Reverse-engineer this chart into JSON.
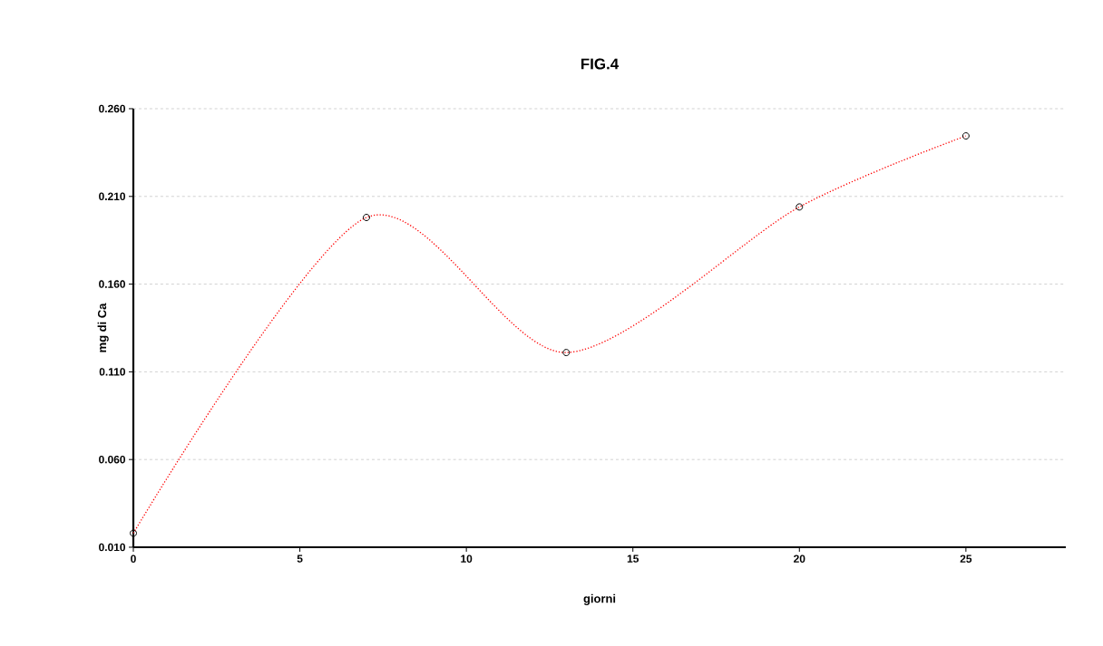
{
  "chart_data": {
    "type": "line",
    "title": "FIG.4",
    "xlabel": "giorni",
    "ylabel": "mg di Ca",
    "x": [
      0,
      7,
      13,
      20,
      25
    ],
    "series": [
      {
        "color": "#ff0000",
        "values": [
          0.018,
          0.198,
          0.121,
          0.204,
          0.2445
        ]
      }
    ],
    "xlim": [
      0,
      28
    ],
    "xticks": [
      0,
      5,
      10,
      15,
      20,
      25
    ],
    "ylim": [
      0.01,
      0.26
    ],
    "yticks": [
      {
        "value": 0.01,
        "label": "0.010"
      },
      {
        "value": 0.06,
        "label": "0.060"
      },
      {
        "value": 0.11,
        "label": "0.110"
      },
      {
        "value": 0.16,
        "label": "0.160"
      },
      {
        "value": 0.21,
        "label": "0.210"
      },
      {
        "value": 0.26,
        "label": "0.260"
      }
    ],
    "grid": "y",
    "marker": "circle",
    "line_style": "dotted"
  }
}
